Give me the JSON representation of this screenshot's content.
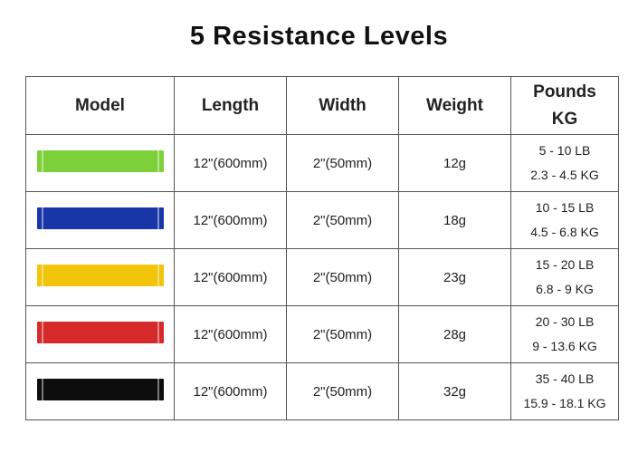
{
  "title": "5 Resistance Levels",
  "table": {
    "headers": {
      "model": "Model",
      "length": "Length",
      "width": "Width",
      "weight": "Weight",
      "pounds": "Pounds",
      "kg": "KG"
    },
    "rows": [
      {
        "band_color": "#7ed03a",
        "length": "12\"(600mm)",
        "width": "2\"(50mm)",
        "weight": "12g",
        "lb": "5 - 10 LB",
        "kg": "2.3 - 4.5 KG"
      },
      {
        "band_color": "#1936a8",
        "length": "12\"(600mm)",
        "width": "2\"(50mm)",
        "weight": "18g",
        "lb": "10 - 15 LB",
        "kg": "4.5 - 6.8 KG"
      },
      {
        "band_color": "#f2c40a",
        "length": "12\"(600mm)",
        "width": "2\"(50mm)",
        "weight": "23g",
        "lb": "15 - 20 LB",
        "kg": "6.8 - 9 KG"
      },
      {
        "band_color": "#d62a2a",
        "length": "12\"(600mm)",
        "width": "2\"(50mm)",
        "weight": "28g",
        "lb": "20 - 30 LB",
        "kg": "9 - 13.6 KG"
      },
      {
        "band_color": "#0d0d0d",
        "length": "12\"(600mm)",
        "width": "2\"(50mm)",
        "weight": "32g",
        "lb": "35 - 40 LB",
        "kg": "15.9 - 18.1 KG"
      }
    ]
  }
}
